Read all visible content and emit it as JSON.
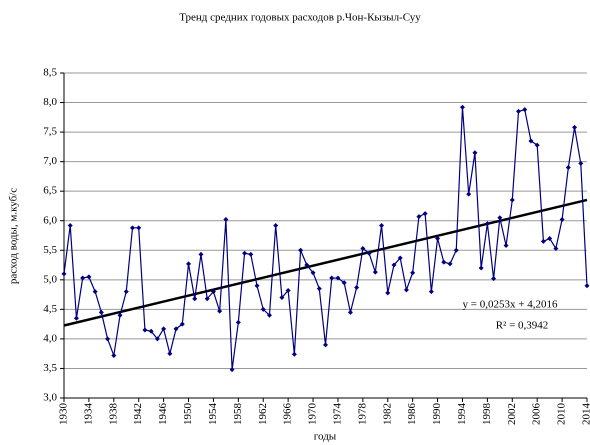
{
  "chart_data": {
    "type": "line",
    "title": "Тренд средних годовых расходов р.Чон-Кызыл-Суу",
    "xlabel": "годы",
    "ylabel": "расход воды, м.куб/с",
    "x": [
      1930,
      1931,
      1932,
      1933,
      1934,
      1935,
      1936,
      1937,
      1938,
      1939,
      1940,
      1941,
      1942,
      1943,
      1944,
      1945,
      1946,
      1947,
      1948,
      1949,
      1950,
      1951,
      1952,
      1953,
      1954,
      1955,
      1956,
      1957,
      1958,
      1959,
      1960,
      1961,
      1962,
      1963,
      1964,
      1965,
      1966,
      1967,
      1968,
      1969,
      1970,
      1971,
      1972,
      1973,
      1974,
      1975,
      1976,
      1977,
      1978,
      1979,
      1980,
      1981,
      1982,
      1983,
      1984,
      1985,
      1986,
      1987,
      1988,
      1989,
      1990,
      1991,
      1992,
      1993,
      1994,
      1995,
      1996,
      1997,
      1998,
      1999,
      2000,
      2001,
      2002,
      2003,
      2004,
      2005,
      2006,
      2007,
      2008,
      2009,
      2010,
      2011,
      2012,
      2013,
      2014
    ],
    "series": [
      {
        "color": "#000080",
        "values": [
          5.1,
          5.92,
          4.35,
          5.03,
          5.05,
          4.8,
          4.45,
          4.0,
          3.72,
          4.4,
          4.8,
          5.88,
          5.88,
          4.15,
          4.13,
          4.0,
          4.17,
          3.75,
          4.17,
          4.25,
          5.27,
          4.68,
          5.43,
          4.68,
          4.8,
          4.47,
          6.02,
          3.48,
          4.28,
          5.45,
          5.43,
          4.9,
          4.5,
          4.4,
          5.92,
          4.7,
          4.82,
          3.74,
          5.5,
          5.25,
          5.12,
          4.85,
          3.9,
          5.03,
          5.03,
          4.95,
          4.45,
          4.87,
          5.53,
          5.45,
          5.13,
          5.92,
          4.78,
          5.25,
          5.37,
          4.83,
          5.12,
          6.07,
          6.12,
          4.8,
          5.7,
          5.3,
          5.27,
          5.5,
          7.92,
          6.45,
          7.15,
          5.2,
          5.95,
          5.02,
          6.05,
          5.58,
          6.35,
          7.85,
          7.88,
          7.35,
          7.28,
          5.65,
          5.7,
          5.53,
          6.02,
          6.9,
          7.58,
          6.97,
          4.9
        ]
      }
    ],
    "trendline": {
      "slope": 0.0253,
      "intercept": 4.2016,
      "color": "#000000",
      "label": "y = 0,0253x + 4,2016",
      "r2_label": "R² = 0,3942"
    },
    "xlim": [
      1930,
      2014
    ],
    "xticks": [
      1930,
      1934,
      1938,
      1942,
      1946,
      1950,
      1954,
      1958,
      1962,
      1966,
      1970,
      1974,
      1978,
      1982,
      1986,
      1990,
      1994,
      1998,
      2002,
      2006,
      2010,
      2014
    ],
    "ylim": [
      3,
      8.5
    ],
    "yticks": [
      {
        "value": 3,
        "label": "3,0"
      },
      {
        "value": 3.5,
        "label": "3,5"
      },
      {
        "value": 4,
        "label": "4,0"
      },
      {
        "value": 4.5,
        "label": "4,5"
      },
      {
        "value": 5,
        "label": "5,0"
      },
      {
        "value": 5.5,
        "label": "5,5"
      },
      {
        "value": 6,
        "label": "6,0"
      },
      {
        "value": 6.5,
        "label": "6,5"
      },
      {
        "value": 7,
        "label": "7,0"
      },
      {
        "value": 7.5,
        "label": "7,5"
      },
      {
        "value": 8,
        "label": "8,0"
      },
      {
        "value": 8.5,
        "label": "8,5"
      }
    ],
    "grid": true
  }
}
